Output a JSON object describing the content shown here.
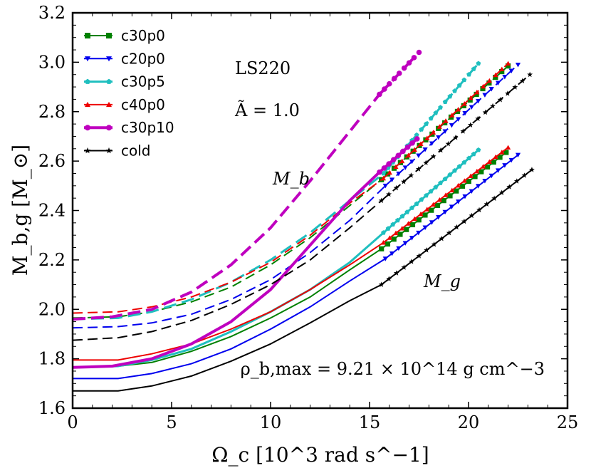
{
  "chart_data": {
    "type": "line",
    "title": "",
    "xlabel": "Ω_c [10^3 rad s^−1]",
    "ylabel": "M_b,g [M_⊙]",
    "xlim": [
      0,
      25
    ],
    "ylim": [
      1.6,
      3.2
    ],
    "xticks": [
      0,
      5,
      10,
      15,
      20,
      25
    ],
    "yticks": [
      1.6,
      1.8,
      2.0,
      2.2,
      2.4,
      2.6,
      2.8,
      3.0,
      3.2
    ],
    "xtick_labels": [
      "0",
      "5",
      "10",
      "15",
      "20",
      "25"
    ],
    "ytick_labels": [
      "1.6",
      "1.8",
      "2.0",
      "2.2",
      "2.4",
      "2.6",
      "2.8",
      "3.0",
      "3.2"
    ],
    "legend_position": "top-left",
    "annotations": {
      "eos": "LS220",
      "a_tilde": "Ã = 1.0",
      "mb_label": "M_b",
      "mg_label": "M_g",
      "rho": "ρ_b,max = 9.21 × 10^14 g cm^−3"
    },
    "series": [
      {
        "name": "c30p0",
        "color": "#008000",
        "marker": "square",
        "width": 2,
        "mb_x": [
          0,
          2.3,
          4,
          6,
          8,
          10,
          12,
          14,
          15.6
        ],
        "mb_y": [
          1.965,
          1.97,
          1.99,
          2.03,
          2.09,
          2.18,
          2.29,
          2.42,
          2.525
        ],
        "mb_sx": [
          15.6,
          22.0
        ],
        "mb_sy": [
          2.525,
          2.985
        ],
        "mg_x": [
          0,
          2.3,
          4,
          6,
          8,
          10,
          12,
          14,
          15.6
        ],
        "mg_y": [
          1.765,
          1.77,
          1.785,
          1.83,
          1.89,
          1.965,
          2.05,
          2.16,
          2.245
        ],
        "mg_sx": [
          15.6,
          21.9
        ],
        "mg_sy": [
          2.245,
          2.635
        ]
      },
      {
        "name": "c20p0",
        "color": "#0000ee",
        "marker": "tri-down",
        "width": 2,
        "mb_x": [
          0,
          2.3,
          4,
          6,
          8,
          10,
          12,
          14,
          15.8
        ],
        "mb_y": [
          1.925,
          1.93,
          1.945,
          1.98,
          2.04,
          2.12,
          2.23,
          2.36,
          2.5
        ],
        "mb_sx": [
          15.8,
          22.5
        ],
        "mb_sy": [
          2.5,
          2.99
        ],
        "mg_x": [
          0,
          2.3,
          4,
          6,
          8,
          10,
          12,
          14,
          15.8
        ],
        "mg_y": [
          1.72,
          1.72,
          1.74,
          1.78,
          1.84,
          1.92,
          2.01,
          2.115,
          2.205
        ],
        "mg_sx": [
          15.8,
          22.5
        ],
        "mg_sy": [
          2.205,
          2.625
        ]
      },
      {
        "name": "c30p5",
        "color": "#1fbfbf",
        "marker": "pentagon",
        "width": 3,
        "mb_x": [
          0,
          2.3,
          4,
          6,
          8,
          10,
          12,
          14,
          15.7
        ],
        "mb_y": [
          1.96,
          1.965,
          1.99,
          2.04,
          2.11,
          2.2,
          2.31,
          2.44,
          2.55
        ],
        "mb_sx": [
          15.7,
          20.5
        ],
        "mb_sy": [
          2.55,
          2.995
        ],
        "mg_x": [
          0,
          2.3,
          4,
          6,
          8,
          10,
          12,
          14,
          15.7
        ],
        "mg_y": [
          1.765,
          1.77,
          1.795,
          1.84,
          1.91,
          1.99,
          2.08,
          2.19,
          2.31
        ],
        "mg_sx": [
          15.7,
          20.5
        ],
        "mg_sy": [
          2.31,
          2.645
        ]
      },
      {
        "name": "c40p0",
        "color": "#ee0000",
        "marker": "tri-up",
        "width": 2,
        "mb_x": [
          0,
          2.3,
          4,
          6,
          8,
          10,
          12,
          14,
          15.7
        ],
        "mb_y": [
          1.985,
          1.99,
          2.01,
          2.05,
          2.11,
          2.19,
          2.3,
          2.43,
          2.53
        ],
        "mb_sx": [
          15.7,
          22.0
        ],
        "mb_sy": [
          2.53,
          2.995
        ],
        "mg_x": [
          0,
          2.3,
          4,
          6,
          8,
          10,
          12,
          14,
          15.7
        ],
        "mg_y": [
          1.795,
          1.795,
          1.82,
          1.86,
          1.92,
          1.99,
          2.08,
          2.18,
          2.27
        ],
        "mg_sx": [
          15.7,
          22.0
        ],
        "mg_sy": [
          2.27,
          2.655
        ]
      },
      {
        "name": "c30p10",
        "color": "#bf00bf",
        "marker": "circle",
        "width": 4,
        "mb_x": [
          0,
          2,
          4,
          6,
          8,
          10,
          12,
          14,
          15.5
        ],
        "mb_y": [
          1.96,
          1.97,
          2.0,
          2.07,
          2.18,
          2.33,
          2.52,
          2.72,
          2.87
        ],
        "mb_sx": [
          15.5,
          17.5
        ],
        "mb_sy": [
          2.87,
          3.04
        ],
        "mg_x": [
          0,
          2,
          4,
          6,
          8,
          10,
          12,
          14,
          15.5
        ],
        "mg_y": [
          1.765,
          1.77,
          1.8,
          1.86,
          1.95,
          2.08,
          2.26,
          2.44,
          2.555
        ],
        "mg_sx": [
          15.5,
          17.4
        ],
        "mg_sy": [
          2.555,
          2.69
        ]
      },
      {
        "name": "cold",
        "color": "#000000",
        "marker": "star",
        "width": 2,
        "mb_x": [
          0,
          2.3,
          4,
          6,
          8,
          10,
          12,
          14,
          15.6
        ],
        "mb_y": [
          1.875,
          1.885,
          1.91,
          1.955,
          2.02,
          2.1,
          2.2,
          2.33,
          2.44
        ],
        "mb_sx": [
          15.6,
          23.1
        ],
        "mb_sy": [
          2.44,
          2.95
        ],
        "mg_x": [
          0,
          2.3,
          4,
          6,
          8,
          10,
          12,
          14,
          15.6
        ],
        "mg_y": [
          1.67,
          1.67,
          1.69,
          1.73,
          1.79,
          1.86,
          1.945,
          2.035,
          2.1
        ],
        "mg_sx": [
          15.6,
          23.2
        ],
        "mg_sy": [
          2.1,
          2.565
        ]
      }
    ]
  }
}
